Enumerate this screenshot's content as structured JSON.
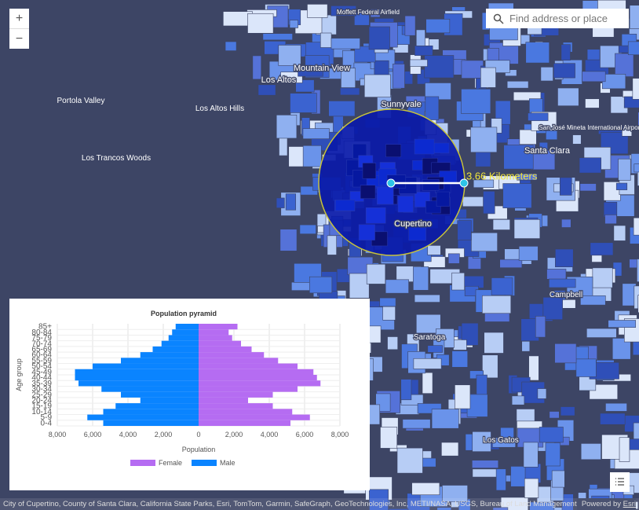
{
  "map": {
    "zoom_in": "+",
    "zoom_out": "−",
    "search_placeholder": "Find address or place",
    "place_labels": [
      "Moffett Federal Airfield",
      "Mountain View",
      "Los Altos",
      "Sunnyvale",
      "Portola Valley",
      "Los Altos Hills",
      "Los Trancos Woods",
      "Cupertino",
      "Santa Clara",
      "San José Mineta International Airport",
      "Saratoga",
      "Campbell",
      "Los Gatos"
    ],
    "measure_label": "3.66 Kilometers",
    "attribution": "City of Cupertino, County of Santa Clara, California State Parks, Esri, TomTom, Garmin, SafeGraph, GeoTechnologies, Inc, METI/NASA, USGS, Bureau of Land Management, EPA, ...",
    "powered_by": "Powered by",
    "powered_by_link": "Esri"
  },
  "chart_data": {
    "type": "pyramid",
    "title": "Population pyramid",
    "x_label": "Population",
    "y_label": "Age group",
    "categories": [
      "0-4",
      "5-9",
      "10-14",
      "15-19",
      "20-24",
      "25-29",
      "30-34",
      "35-39",
      "40-44",
      "45-49",
      "50-54",
      "55-59",
      "60-64",
      "65-69",
      "70-74",
      "75-79",
      "80-84",
      "85+"
    ],
    "series": [
      {
        "name": "Female",
        "color": "#b56cf2",
        "values": [
          5200,
          6300,
          5300,
          4200,
          2800,
          4200,
          5600,
          6900,
          6700,
          6500,
          5600,
          4500,
          3700,
          3000,
          2400,
          1900,
          1700,
          2200
        ]
      },
      {
        "name": "Male",
        "color": "#0a84ff",
        "values": [
          -5400,
          -6300,
          -5400,
          -4700,
          -3300,
          -4400,
          -5500,
          -6800,
          -7000,
          -7000,
          -6000,
          -4400,
          -3300,
          -2600,
          -2100,
          -1700,
          -1500,
          -1300
        ]
      }
    ],
    "xlim": [
      -8000,
      8000
    ],
    "xticks": [
      {
        "value": -8000,
        "label": "8,000"
      },
      {
        "value": -6000,
        "label": "6,000"
      },
      {
        "value": -4000,
        "label": "4,000"
      },
      {
        "value": -2000,
        "label": "2,000"
      },
      0,
      {
        "value": 2000,
        "label": "2,000"
      },
      {
        "value": 4000,
        "label": "4,000"
      },
      {
        "value": 6000,
        "label": "6,000"
      },
      {
        "value": 8000,
        "label": "8,000"
      }
    ],
    "grid": true
  }
}
